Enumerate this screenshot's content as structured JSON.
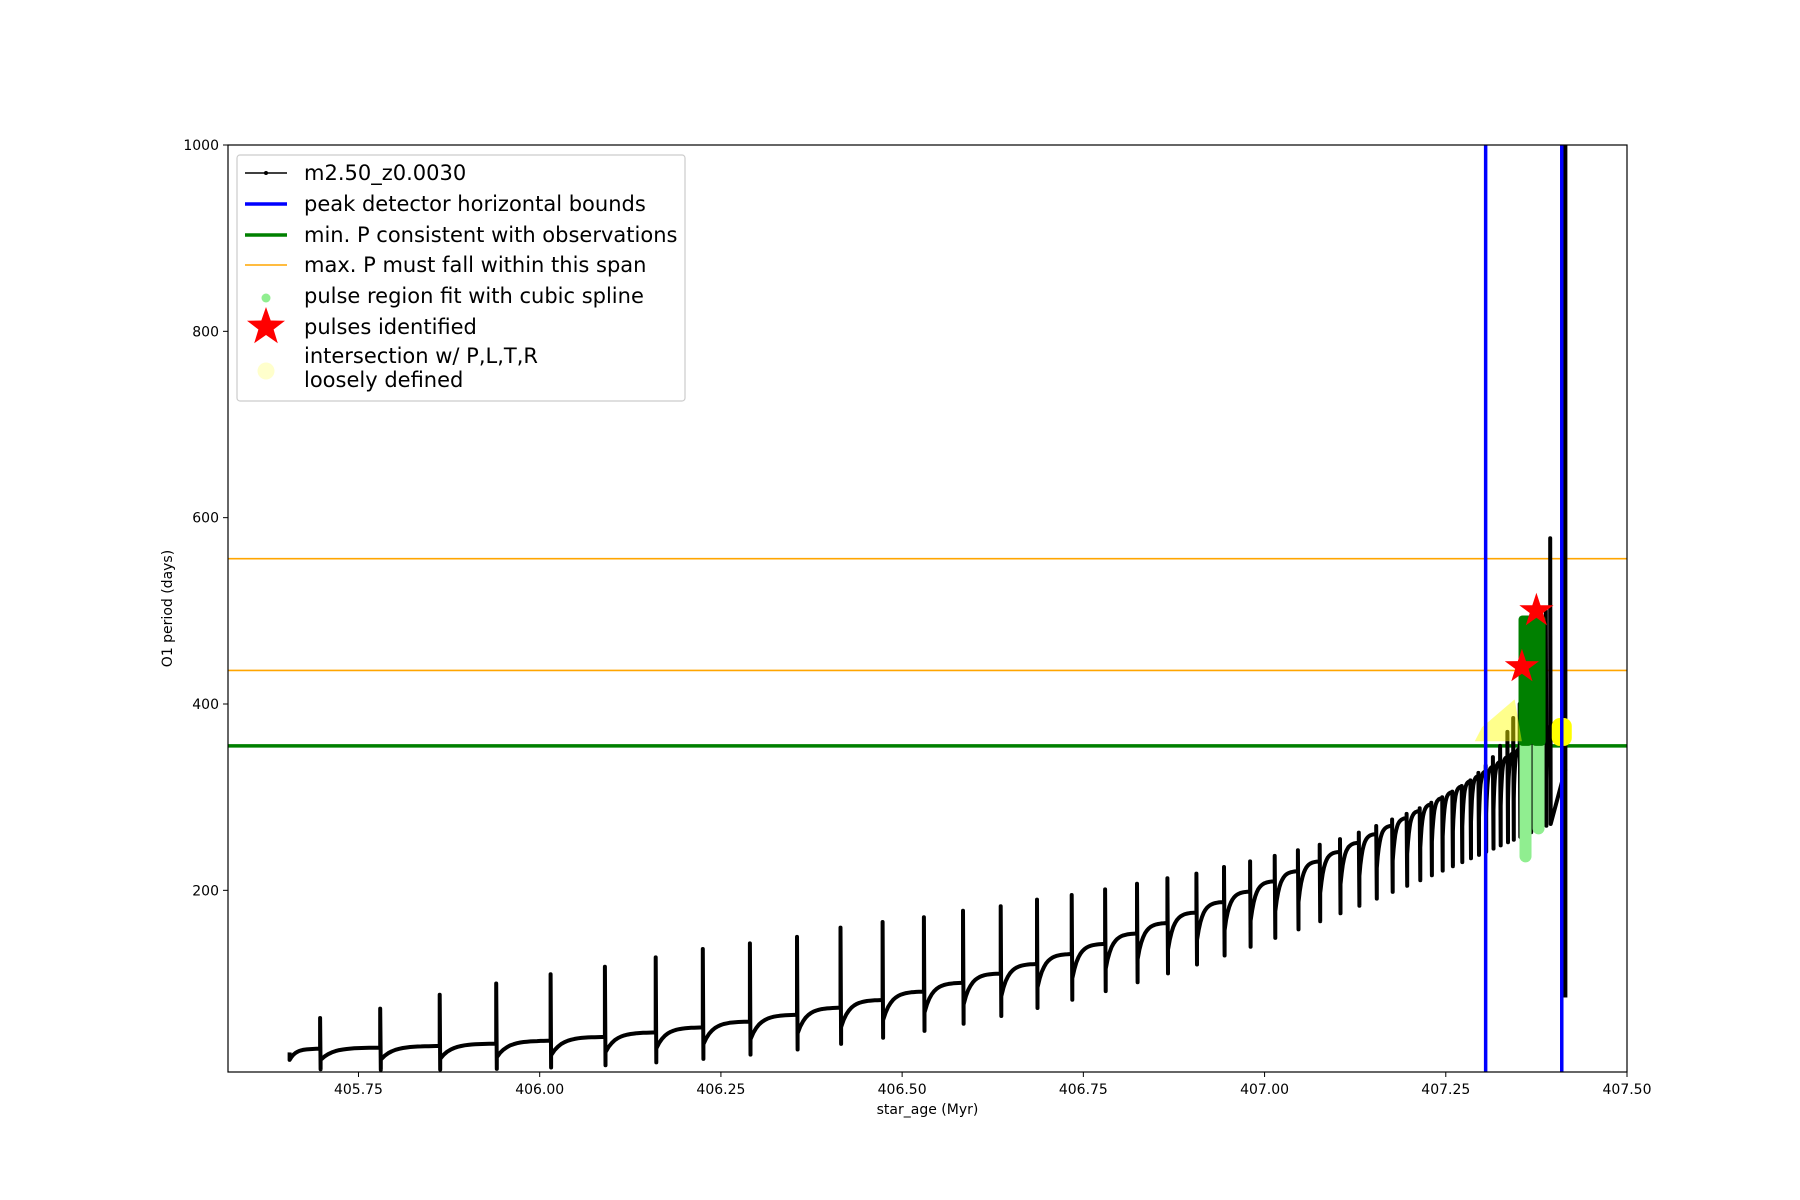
{
  "chart_data": {
    "type": "line",
    "xlabel": "star_age (Myr)",
    "ylabel": "O1 period (days)",
    "xlim": [
      405.57,
      407.5
    ],
    "ylim": [
      5,
      1000
    ],
    "xticks": [
      "405.75",
      "406.00",
      "406.25",
      "406.50",
      "406.75",
      "407.00",
      "407.25",
      "407.50"
    ],
    "yticks": [
      "200",
      "400",
      "600",
      "800",
      "1000"
    ],
    "grid": false,
    "legend_position": "upper-left",
    "colors": {
      "series": "#000000",
      "bounds": "#0000ff",
      "min_p": "#008000",
      "max_p": "#ffa500",
      "spline": "#90ee90",
      "pulses": "#ff0000",
      "intersection": "#ffff00",
      "intersection_legend": "#ffffcc"
    },
    "legend": [
      {
        "label": "m2.50_z0.0030",
        "marker": "line-dot",
        "color": "#000000"
      },
      {
        "label": "peak detector horizontal bounds",
        "marker": "thick-line",
        "color": "#0000ff"
      },
      {
        "label": "min. P consistent with observations",
        "marker": "thick-line",
        "color": "#008000"
      },
      {
        "label": "max. P must fall within this span",
        "marker": "thin-line",
        "color": "#ffa500"
      },
      {
        "label": "pulse region fit with cubic spline",
        "marker": "small-dot",
        "color": "#90ee90"
      },
      {
        "label": "pulses identified",
        "marker": "star",
        "color": "#ff0000"
      },
      {
        "label": "intersection w/ P,L,T,R",
        "label2": "loosely defined",
        "marker": "big-dot",
        "color": "#ffffcc"
      }
    ],
    "series_name": "m2.50_z0.0030",
    "series": {
      "start_x": 405.655,
      "end_x": 407.415,
      "start_y": 18,
      "end_y": 330,
      "pulse_x": [
        405.697,
        405.78,
        405.862,
        405.94,
        406.015,
        406.09,
        406.16,
        406.225,
        406.29,
        406.355,
        406.415,
        406.473,
        406.53,
        406.584,
        406.636,
        406.686,
        406.734,
        406.78,
        406.824,
        406.866,
        406.906,
        406.944,
        406.98,
        407.014,
        407.046,
        407.076,
        407.104,
        407.13,
        407.154,
        407.176,
        407.196,
        407.214,
        407.23,
        407.245,
        407.259,
        407.272,
        407.284,
        407.295,
        407.305,
        407.315,
        407.325,
        407.335,
        407.343,
        407.352,
        407.36,
        407.367,
        407.374,
        407.381,
        407.388,
        407.394
      ],
      "pulse_peak": [
        63,
        73,
        88,
        100,
        110,
        118,
        128,
        137,
        143,
        150,
        160,
        166,
        171,
        178,
        183,
        190,
        195,
        201,
        207,
        213,
        218,
        225,
        231,
        237,
        243,
        249,
        255,
        262,
        269,
        276,
        282,
        288,
        294,
        300,
        306,
        312,
        318,
        326,
        334,
        343,
        355,
        370,
        385,
        400,
        415,
        430,
        450,
        470,
        500,
        578
      ]
    },
    "bounds_x": [
      407.305,
      407.41
    ],
    "min_p": 355,
    "max_p_span": [
      436,
      556
    ],
    "pulses": [
      {
        "x": 407.355,
        "y": 440
      },
      {
        "x": 407.375,
        "y": 500
      }
    ],
    "spline_regions": [
      {
        "x": 407.36,
        "y0": 230,
        "y1": 490
      },
      {
        "x": 407.378,
        "y0": 260,
        "y1": 495
      }
    ],
    "intersection": {
      "x0": 407.29,
      "x1": 407.415,
      "y": 365
    }
  }
}
